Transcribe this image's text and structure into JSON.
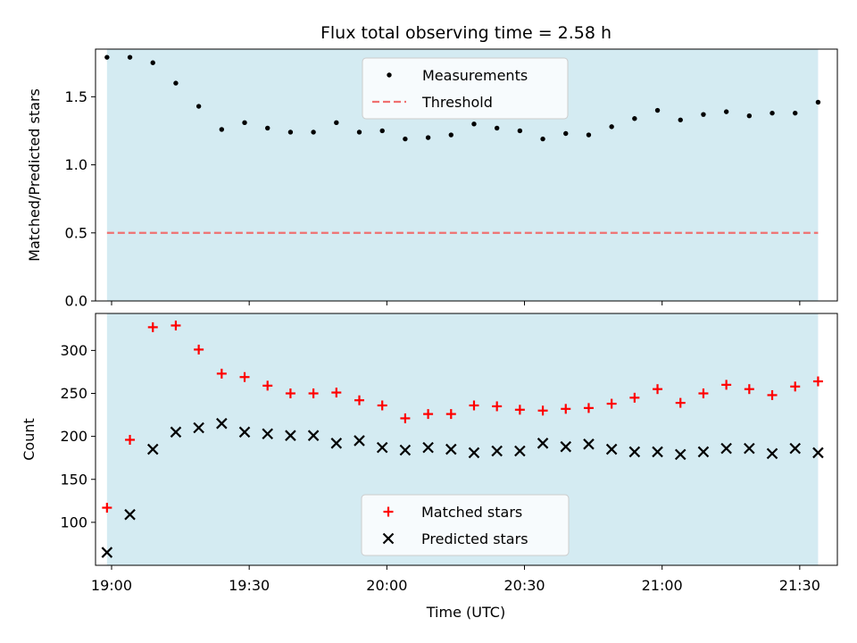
{
  "chart_data": {
    "title": "Flux total observing time = 2.58 h",
    "xlabel": "Time (UTC)",
    "x_ticks": [
      "19:00",
      "19:30",
      "20:00",
      "20:30",
      "21:00",
      "21:30"
    ],
    "time_points": [
      "18:59",
      "19:04",
      "19:09",
      "19:14",
      "19:19",
      "19:24",
      "19:29",
      "19:34",
      "19:39",
      "19:44",
      "19:49",
      "19:54",
      "19:59",
      "20:04",
      "20:09",
      "20:14",
      "20:19",
      "20:24",
      "20:29",
      "20:34",
      "20:39",
      "20:44",
      "20:49",
      "20:54",
      "20:59",
      "21:04",
      "21:09",
      "21:14",
      "21:19",
      "21:24",
      "21:29",
      "21:34"
    ],
    "shaded_span": [
      "18:59",
      "21:34"
    ],
    "shade_color": "#add8e6",
    "panels": [
      {
        "type": "scatter",
        "ylabel": "Matched/Predicted stars",
        "ylim": [
          0,
          1.85
        ],
        "y_ticks": [
          "0.0",
          "0.5",
          "1.0",
          "1.5"
        ],
        "threshold": 0.5,
        "series": [
          {
            "name": "Measurements",
            "marker": "dot",
            "color": "#000000",
            "values": [
              1.79,
              1.79,
              1.75,
              1.6,
              1.43,
              1.26,
              1.31,
              1.27,
              1.24,
              1.24,
              1.31,
              1.24,
              1.25,
              1.19,
              1.2,
              1.22,
              1.3,
              1.27,
              1.25,
              1.19,
              1.23,
              1.22,
              1.28,
              1.34,
              1.4,
              1.33,
              1.37,
              1.39,
              1.36,
              1.38,
              1.38,
              1.46
            ]
          },
          {
            "name": "Threshold",
            "marker": "dashed-line",
            "color": "#f07070",
            "values": [
              0.5
            ]
          }
        ],
        "legend": "top-center"
      },
      {
        "type": "scatter",
        "ylabel": "Count",
        "ylim": [
          50,
          343
        ],
        "y_ticks": [
          "100",
          "150",
          "200",
          "250",
          "300"
        ],
        "series": [
          {
            "name": "Matched stars",
            "marker": "plus",
            "color": "#ff0000",
            "values": [
              117,
              196,
              327,
              329,
              301,
              273,
              269,
              259,
              250,
              250,
              251,
              242,
              236,
              221,
              226,
              226,
              236,
              235,
              231,
              230,
              232,
              233,
              238,
              245,
              255,
              239,
              250,
              260,
              255,
              248,
              258,
              264
            ]
          },
          {
            "name": "Predicted stars",
            "marker": "x",
            "color": "#000000",
            "values": [
              65,
              109,
              185,
              205,
              210,
              215,
              205,
              203,
              201,
              201,
              192,
              195,
              187,
              184,
              187,
              185,
              181,
              183,
              183,
              192,
              188,
              191,
              185,
              182,
              182,
              179,
              182,
              186,
              186,
              180,
              186,
              181
            ]
          }
        ],
        "legend": "bottom-center"
      }
    ]
  }
}
